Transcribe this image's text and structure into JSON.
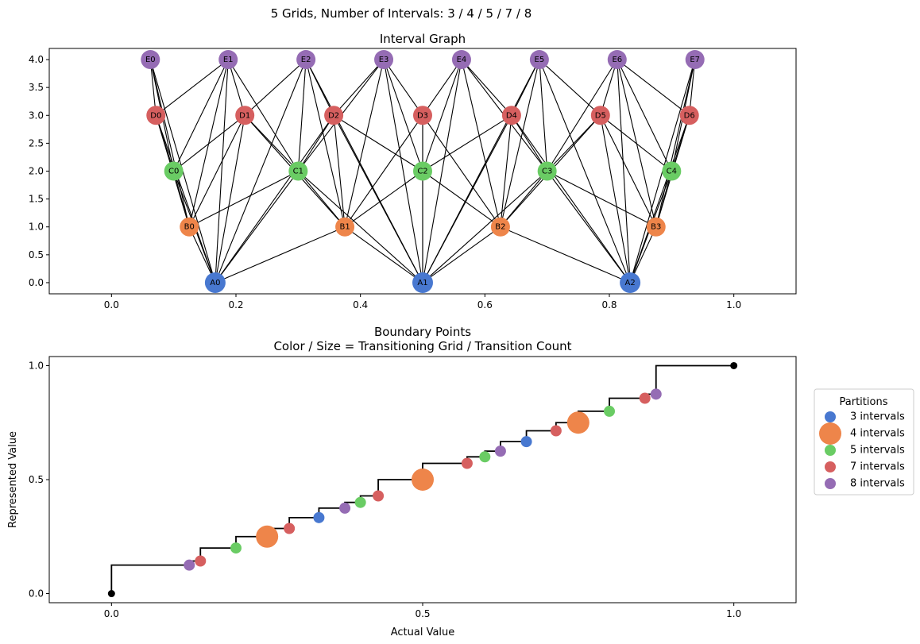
{
  "suptitle": "5 Grids, Number of Intervals: 3 / 4 / 5 / 7 / 8",
  "colors": {
    "grid_3": "#4878d0",
    "grid_4": "#ee854a",
    "grid_5": "#6acc64",
    "grid_7": "#d65f5f",
    "grid_8": "#956cb4",
    "edge": "#000000",
    "endpoint": "#000000"
  },
  "chart_data": [
    {
      "type": "scatter",
      "subtype": "network-graph",
      "title": "Interval Graph",
      "xlim": [
        -0.1,
        1.1
      ],
      "ylim": [
        -0.2,
        4.2
      ],
      "xticks": [
        0.0,
        0.2,
        0.4,
        0.6,
        0.8,
        1.0
      ],
      "xtick_labels": [
        "0.0",
        "0.2",
        "0.4",
        "0.6",
        "0.8",
        "1.0"
      ],
      "yticks": [
        0.0,
        0.5,
        1.0,
        1.5,
        2.0,
        2.5,
        3.0,
        3.5,
        4.0
      ],
      "ytick_labels": [
        "0.0",
        "0.5",
        "1.0",
        "1.5",
        "2.0",
        "2.5",
        "3.0",
        "3.5",
        "4.0"
      ],
      "levels": [
        {
          "prefix": "A",
          "intervals": 3,
          "color_key": "grid_3",
          "y": 0
        },
        {
          "prefix": "B",
          "intervals": 4,
          "color_key": "grid_4",
          "y": 1
        },
        {
          "prefix": "C",
          "intervals": 5,
          "color_key": "grid_5",
          "y": 2
        },
        {
          "prefix": "D",
          "intervals": 7,
          "color_key": "grid_7",
          "y": 3
        },
        {
          "prefix": "E",
          "intervals": 8,
          "color_key": "grid_8",
          "y": 4
        }
      ],
      "edge_rule": "nodes on different levels are connected when their intervals overlap"
    },
    {
      "type": "scatter",
      "subtype": "step",
      "title": "Boundary Points",
      "subtitle": "Color / Size = Transitioning Grid / Transition Count",
      "xlabel": "Actual Value",
      "ylabel": "Represented Value",
      "xlim": [
        -0.1,
        1.1
      ],
      "ylim": [
        -0.04,
        1.04
      ],
      "xticks": [
        0.0,
        0.5,
        1.0
      ],
      "xtick_labels": [
        "0.0",
        "0.5",
        "1.0"
      ],
      "yticks": [
        0.0,
        0.5,
        1.0
      ],
      "ytick_labels": [
        "0.0",
        "0.5",
        "1.0"
      ],
      "step_points": [
        [
          0.0,
          0.0
        ],
        [
          0.125,
          0.125
        ],
        [
          0.1429,
          0.1429
        ],
        [
          0.2,
          0.2
        ],
        [
          0.25,
          0.25
        ],
        [
          0.2857,
          0.2857
        ],
        [
          0.3333,
          0.3333
        ],
        [
          0.375,
          0.375
        ],
        [
          0.4,
          0.4
        ],
        [
          0.4286,
          0.4286
        ],
        [
          0.5,
          0.5
        ],
        [
          0.5714,
          0.5714
        ],
        [
          0.6,
          0.6
        ],
        [
          0.625,
          0.625
        ],
        [
          0.6667,
          0.6667
        ],
        [
          0.7143,
          0.7143
        ],
        [
          0.75,
          0.75
        ],
        [
          0.8,
          0.8
        ],
        [
          0.8571,
          0.8571
        ],
        [
          0.875,
          0.875
        ],
        [
          1.0,
          1.0
        ]
      ],
      "boundary_points": [
        {
          "x": 0.125,
          "y": 0.125,
          "grid": 8,
          "count": 1
        },
        {
          "x": 0.1429,
          "y": 0.1429,
          "grid": 7,
          "count": 1
        },
        {
          "x": 0.2,
          "y": 0.2,
          "grid": 5,
          "count": 1
        },
        {
          "x": 0.25,
          "y": 0.25,
          "grid": 4,
          "count": 2
        },
        {
          "x": 0.2857,
          "y": 0.2857,
          "grid": 7,
          "count": 1
        },
        {
          "x": 0.3333,
          "y": 0.3333,
          "grid": 3,
          "count": 1
        },
        {
          "x": 0.375,
          "y": 0.375,
          "grid": 8,
          "count": 1
        },
        {
          "x": 0.4,
          "y": 0.4,
          "grid": 5,
          "count": 1
        },
        {
          "x": 0.4286,
          "y": 0.4286,
          "grid": 7,
          "count": 1
        },
        {
          "x": 0.5,
          "y": 0.5,
          "grid": 4,
          "count": 2
        },
        {
          "x": 0.5714,
          "y": 0.5714,
          "grid": 7,
          "count": 1
        },
        {
          "x": 0.6,
          "y": 0.6,
          "grid": 5,
          "count": 1
        },
        {
          "x": 0.625,
          "y": 0.625,
          "grid": 8,
          "count": 1
        },
        {
          "x": 0.6667,
          "y": 0.6667,
          "grid": 3,
          "count": 1
        },
        {
          "x": 0.7143,
          "y": 0.7143,
          "grid": 7,
          "count": 1
        },
        {
          "x": 0.75,
          "y": 0.75,
          "grid": 4,
          "count": 2
        },
        {
          "x": 0.8,
          "y": 0.8,
          "grid": 5,
          "count": 1
        },
        {
          "x": 0.8571,
          "y": 0.8571,
          "grid": 7,
          "count": 1
        },
        {
          "x": 0.875,
          "y": 0.875,
          "grid": 8,
          "count": 1
        }
      ],
      "endpoints": [
        [
          0.0,
          0.0
        ],
        [
          1.0,
          1.0
        ]
      ],
      "legend_title": "Partitions",
      "legend_position": "right",
      "legend": [
        {
          "label": "3 intervals",
          "color_key": "grid_3",
          "marker": "small"
        },
        {
          "label": "4 intervals",
          "color_key": "grid_4",
          "marker": "large"
        },
        {
          "label": "5 intervals",
          "color_key": "grid_5",
          "marker": "small"
        },
        {
          "label": "7 intervals",
          "color_key": "grid_7",
          "marker": "small"
        },
        {
          "label": "8 intervals",
          "color_key": "grid_8",
          "marker": "small"
        }
      ]
    }
  ]
}
